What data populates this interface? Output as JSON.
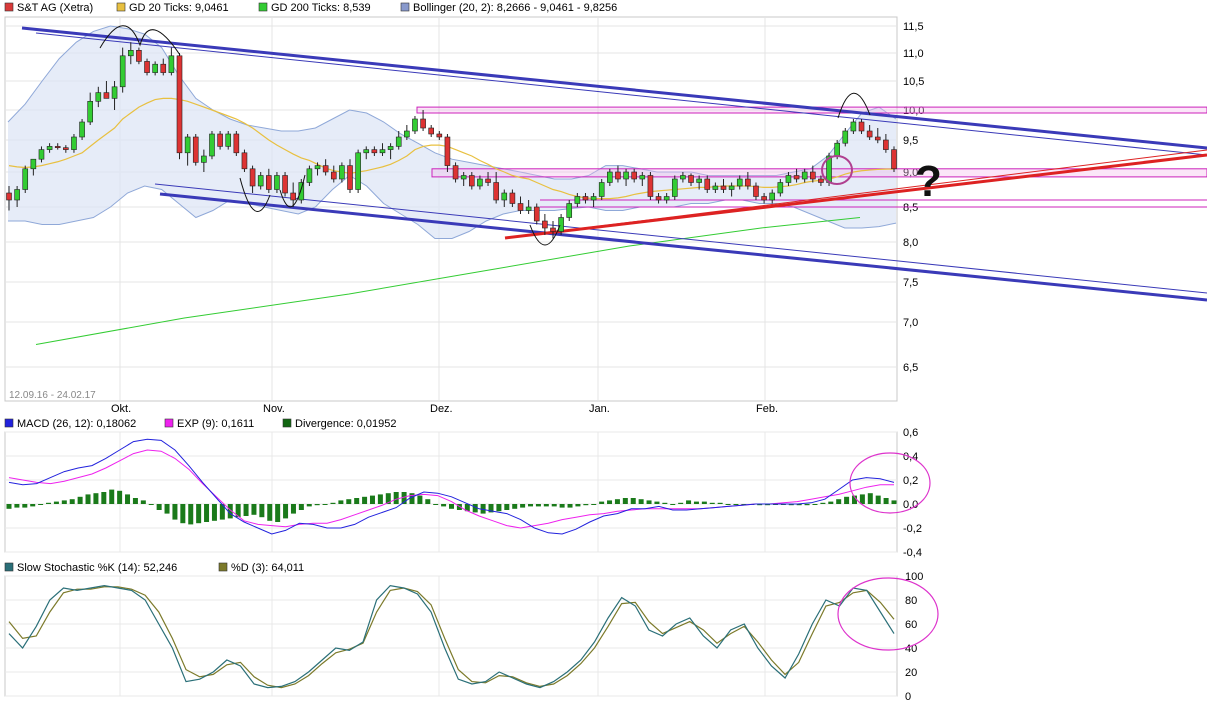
{
  "chart_data": [
    {
      "type": "candlestick",
      "title": "S&T AG (Xetra)",
      "legend": [
        {
          "label": "S&T AG (Xetra)",
          "color": "#d93a3a"
        },
        {
          "label": "GD 20 Ticks: 9,0461",
          "color": "#e8c040"
        },
        {
          "label": "GD 200 Ticks: 8,539",
          "color": "#33cc33"
        },
        {
          "label": "Bollinger (20, 2): 8,2666 - 9,0461 - 9,8256",
          "color": "#8899cc"
        }
      ],
      "date_range": "12.09.16 - 24.02.17",
      "x_ticks": [
        "Okt.",
        "Nov.",
        "Dez.",
        "Jan.",
        "Feb."
      ],
      "y_ticks": [
        "11,5",
        "11,0",
        "10,5",
        "10,0",
        "9,5",
        "9,0",
        "8,5",
        "8,0",
        "7,5",
        "7,0",
        "6,5"
      ],
      "ylim": [
        6.2,
        11.7
      ],
      "annotation": "?",
      "ohlc": [
        [
          8.7,
          8.8,
          8.45,
          8.6
        ],
        [
          8.6,
          8.8,
          8.5,
          8.75
        ],
        [
          8.75,
          9.1,
          8.7,
          9.05
        ],
        [
          9.05,
          9.2,
          8.95,
          9.2
        ],
        [
          9.2,
          9.4,
          9.15,
          9.35
        ],
        [
          9.35,
          9.45,
          9.3,
          9.4
        ],
        [
          9.4,
          9.45,
          9.35,
          9.38
        ],
        [
          9.38,
          9.42,
          9.3,
          9.35
        ],
        [
          9.35,
          9.6,
          9.3,
          9.55
        ],
        [
          9.55,
          9.85,
          9.5,
          9.8
        ],
        [
          9.8,
          10.3,
          9.75,
          10.15
        ],
        [
          10.15,
          10.4,
          10.05,
          10.3
        ],
        [
          10.3,
          10.5,
          10.2,
          10.2
        ],
        [
          10.2,
          10.5,
          10.0,
          10.4
        ],
        [
          10.4,
          11.1,
          10.3,
          10.95
        ],
        [
          10.95,
          11.2,
          10.8,
          11.05
        ],
        [
          11.05,
          11.1,
          10.8,
          10.85
        ],
        [
          10.85,
          10.9,
          10.6,
          10.65
        ],
        [
          10.65,
          10.85,
          10.6,
          10.8
        ],
        [
          10.8,
          10.9,
          10.6,
          10.65
        ],
        [
          10.65,
          11.1,
          10.6,
          10.95
        ],
        [
          10.95,
          11.0,
          9.2,
          9.3
        ],
        [
          9.3,
          9.6,
          9.1,
          9.55
        ],
        [
          9.55,
          9.6,
          9.1,
          9.15
        ],
        [
          9.15,
          9.35,
          9.0,
          9.25
        ],
        [
          9.25,
          9.65,
          9.2,
          9.6
        ],
        [
          9.6,
          9.65,
          9.35,
          9.4
        ],
        [
          9.4,
          9.65,
          9.35,
          9.6
        ],
        [
          9.6,
          9.65,
          9.25,
          9.3
        ],
        [
          9.3,
          9.35,
          9.0,
          9.05
        ],
        [
          9.05,
          9.1,
          8.7,
          8.8
        ],
        [
          8.8,
          9.0,
          8.75,
          8.95
        ],
        [
          8.95,
          9.05,
          8.7,
          8.75
        ],
        [
          8.75,
          9.0,
          8.7,
          8.95
        ],
        [
          8.95,
          9.0,
          8.65,
          8.7
        ],
        [
          8.7,
          8.85,
          8.5,
          8.6
        ],
        [
          8.6,
          8.9,
          8.55,
          8.85
        ],
        [
          8.85,
          9.1,
          8.8,
          9.05
        ],
        [
          9.05,
          9.15,
          8.95,
          9.1
        ],
        [
          9.1,
          9.2,
          8.95,
          9.0
        ],
        [
          9.0,
          9.1,
          8.85,
          8.9
        ],
        [
          8.9,
          9.15,
          8.85,
          9.1
        ],
        [
          9.1,
          9.2,
          8.7,
          8.75
        ],
        [
          8.75,
          9.35,
          8.7,
          9.3
        ],
        [
          9.3,
          9.4,
          9.2,
          9.35
        ],
        [
          9.35,
          9.4,
          9.25,
          9.3
        ],
        [
          9.3,
          9.45,
          9.25,
          9.35
        ],
        [
          9.35,
          9.45,
          9.2,
          9.4
        ],
        [
          9.4,
          9.65,
          9.35,
          9.55
        ],
        [
          9.55,
          9.75,
          9.5,
          9.65
        ],
        [
          9.65,
          9.9,
          9.6,
          9.85
        ],
        [
          9.85,
          10.0,
          9.65,
          9.7
        ],
        [
          9.7,
          9.75,
          9.55,
          9.6
        ],
        [
          9.6,
          9.65,
          9.5,
          9.55
        ],
        [
          9.55,
          9.6,
          9.0,
          9.1
        ],
        [
          9.1,
          9.15,
          8.85,
          8.9
        ],
        [
          8.9,
          9.0,
          8.8,
          8.95
        ],
        [
          8.95,
          9.0,
          8.75,
          8.8
        ],
        [
          8.8,
          8.95,
          8.75,
          8.9
        ],
        [
          8.9,
          9.0,
          8.8,
          8.85
        ],
        [
          8.85,
          9.0,
          8.55,
          8.6
        ],
        [
          8.6,
          8.75,
          8.5,
          8.7
        ],
        [
          8.7,
          8.75,
          8.5,
          8.55
        ],
        [
          8.55,
          8.65,
          8.4,
          8.45
        ],
        [
          8.45,
          8.6,
          8.4,
          8.5
        ],
        [
          8.5,
          8.55,
          8.25,
          8.3
        ],
        [
          8.3,
          8.4,
          8.1,
          8.2
        ],
        [
          8.2,
          8.3,
          8.05,
          8.15
        ],
        [
          8.15,
          8.4,
          8.1,
          8.35
        ],
        [
          8.35,
          8.6,
          8.3,
          8.55
        ],
        [
          8.55,
          8.7,
          8.5,
          8.65
        ],
        [
          8.65,
          8.7,
          8.55,
          8.6
        ],
        [
          8.6,
          8.7,
          8.5,
          8.65
        ],
        [
          8.65,
          8.9,
          8.6,
          8.85
        ],
        [
          8.85,
          9.05,
          8.8,
          9.0
        ],
        [
          9.0,
          9.1,
          8.85,
          8.9
        ],
        [
          8.9,
          9.05,
          8.8,
          9.0
        ],
        [
          9.0,
          9.05,
          8.85,
          8.9
        ],
        [
          8.9,
          9.0,
          8.8,
          8.95
        ],
        [
          8.95,
          9.0,
          8.6,
          8.65
        ],
        [
          8.65,
          8.7,
          8.55,
          8.6
        ],
        [
          8.6,
          8.7,
          8.55,
          8.65
        ],
        [
          8.65,
          8.95,
          8.6,
          8.9
        ],
        [
          8.9,
          9.0,
          8.85,
          8.95
        ],
        [
          8.95,
          8.98,
          8.8,
          8.85
        ],
        [
          8.85,
          8.95,
          8.75,
          8.9
        ],
        [
          8.9,
          8.95,
          8.7,
          8.75
        ],
        [
          8.75,
          8.85,
          8.7,
          8.8
        ],
        [
          8.8,
          8.9,
          8.7,
          8.75
        ],
        [
          8.75,
          8.85,
          8.65,
          8.8
        ],
        [
          8.8,
          8.95,
          8.75,
          8.9
        ],
        [
          8.9,
          9.0,
          8.75,
          8.8
        ],
        [
          8.8,
          8.85,
          8.6,
          8.65
        ],
        [
          8.65,
          8.7,
          8.55,
          8.6
        ],
        [
          8.6,
          8.75,
          8.55,
          8.7
        ],
        [
          8.7,
          8.9,
          8.65,
          8.85
        ],
        [
          8.85,
          9.0,
          8.8,
          8.95
        ],
        [
          8.95,
          9.05,
          8.85,
          8.9
        ],
        [
          8.9,
          9.05,
          8.85,
          9.0
        ],
        [
          9.0,
          9.1,
          8.85,
          8.9
        ],
        [
          8.9,
          8.95,
          8.8,
          8.85
        ],
        [
          8.85,
          9.3,
          8.8,
          9.25
        ],
        [
          9.25,
          9.5,
          9.2,
          9.45
        ],
        [
          9.45,
          9.7,
          9.4,
          9.65
        ],
        [
          9.65,
          9.85,
          9.6,
          9.8
        ],
        [
          9.8,
          9.85,
          9.6,
          9.65
        ],
        [
          9.65,
          9.75,
          9.5,
          9.55
        ],
        [
          9.55,
          9.7,
          9.45,
          9.5
        ],
        [
          9.5,
          9.6,
          9.3,
          9.35
        ],
        [
          9.35,
          9.4,
          9.0,
          9.05
        ]
      ],
      "gd20": [
        9.1,
        9.08,
        9.07,
        9.08,
        9.1,
        9.13,
        9.16,
        9.2,
        9.25,
        9.3,
        9.4,
        9.5,
        9.6,
        9.7,
        9.85,
        9.95,
        10.05,
        10.12,
        10.18,
        10.2,
        10.2,
        10.18,
        10.15,
        10.1,
        10.05,
        10.0,
        9.95,
        9.9,
        9.85,
        9.78,
        9.7,
        9.6,
        9.5,
        9.42,
        9.35,
        9.28,
        9.22,
        9.18,
        9.12,
        9.06,
        9.02,
        9.0,
        8.98,
        9.0,
        9.02,
        9.05,
        9.08,
        9.12,
        9.18,
        9.25,
        9.35,
        9.4,
        9.42,
        9.42,
        9.4,
        9.35,
        9.3,
        9.25,
        9.18,
        9.12,
        9.05,
        9.0,
        8.95,
        8.92,
        8.9,
        8.85,
        8.8,
        8.75,
        8.72,
        8.68,
        8.65,
        8.63,
        8.62,
        8.62,
        8.62,
        8.63,
        8.65,
        8.68,
        8.7,
        8.72,
        8.73,
        8.74,
        8.75,
        8.76,
        8.77,
        8.78,
        8.78,
        8.79,
        8.8,
        8.8,
        8.8,
        8.8,
        8.79,
        8.78,
        8.78,
        8.79,
        8.8,
        8.82,
        8.85,
        8.87,
        8.88,
        8.9,
        8.93,
        8.97,
        9.0,
        9.02,
        9.03,
        9.04,
        9.045,
        9.0461
      ],
      "gd200": [
        [
          0.0,
          6.75
        ],
        [
          0.18,
          7.05
        ],
        [
          0.38,
          7.35
        ],
        [
          0.55,
          7.65
        ],
        [
          0.72,
          7.95
        ],
        [
          0.88,
          8.2
        ],
        [
          1.0,
          8.35
        ]
      ],
      "bollinger_upper": [
        9.8,
        10.1,
        10.5,
        10.9,
        11.2,
        11.4,
        11.5,
        11.45,
        11.35,
        11.1,
        10.6,
        10.2,
        10.0,
        9.85,
        9.75,
        9.7,
        9.65,
        9.65,
        9.7,
        9.85,
        10.0,
        9.95,
        9.8,
        9.6,
        9.45,
        9.3,
        9.2,
        9.15,
        9.1,
        9.05,
        9.0,
        8.95,
        8.9,
        8.9,
        8.95,
        9.1,
        9.1,
        9.05,
        9.0,
        9.0,
        9.0,
        8.95,
        8.95,
        8.95,
        8.95,
        8.95,
        9.0,
        9.05,
        9.25,
        9.6,
        9.95,
        10.05,
        9.85
      ],
      "bollinger_lower": [
        8.3,
        8.3,
        8.25,
        8.25,
        8.3,
        8.35,
        8.5,
        8.7,
        8.8,
        8.75,
        8.55,
        8.35,
        8.45,
        8.6,
        8.55,
        8.5,
        8.45,
        8.4,
        8.5,
        8.75,
        8.95,
        8.8,
        8.55,
        8.4,
        8.25,
        8.05,
        8.05,
        8.15,
        8.3,
        8.4,
        8.45,
        8.45,
        8.45,
        8.48,
        8.5,
        8.45,
        8.45,
        8.5,
        8.5,
        8.5,
        8.55,
        8.55,
        8.6,
        8.6,
        8.55,
        8.55,
        8.5,
        8.4,
        8.3,
        8.2,
        8.2,
        8.22,
        8.27
      ]
    },
    {
      "type": "macd",
      "legend": [
        {
          "label": "MACD (26, 12): 0,18062",
          "color": "#2222dd"
        },
        {
          "label": "EXP (9): 0,1611",
          "color": "#ee22ee"
        },
        {
          "label": "Divergence: 0,01952",
          "color": "#116611"
        }
      ],
      "y_ticks": [
        "0,6",
        "0,4",
        "0,2",
        "0,0",
        "-0,2",
        "-0,4"
      ],
      "ylim": [
        -0.4,
        0.6
      ],
      "macd": [
        0.18,
        0.16,
        0.17,
        0.22,
        0.27,
        0.3,
        0.32,
        0.38,
        0.45,
        0.52,
        0.54,
        0.53,
        0.45,
        0.32,
        0.18,
        0.05,
        -0.08,
        -0.15,
        -0.2,
        -0.25,
        -0.22,
        -0.16,
        -0.17,
        -0.2,
        -0.2,
        -0.17,
        -0.11,
        -0.07,
        -0.03,
        0.05,
        0.1,
        0.09,
        0.06,
        0.01,
        -0.04,
        -0.06,
        -0.08,
        -0.13,
        -0.2,
        -0.24,
        -0.25,
        -0.21,
        -0.15,
        -0.1,
        -0.08,
        -0.04,
        -0.04,
        -0.02,
        -0.05,
        -0.05,
        -0.04,
        -0.03,
        -0.02,
        -0.01,
        0.0,
        0.0,
        0.0,
        0.0,
        0.01,
        0.04,
        0.12,
        0.2,
        0.22,
        0.21,
        0.18
      ],
      "signal": [
        0.22,
        0.2,
        0.18,
        0.17,
        0.19,
        0.22,
        0.25,
        0.3,
        0.36,
        0.42,
        0.45,
        0.44,
        0.38,
        0.29,
        0.17,
        0.06,
        -0.05,
        -0.14,
        -0.17,
        -0.18,
        -0.19,
        -0.17,
        -0.16,
        -0.16,
        -0.13,
        -0.09,
        -0.05,
        -0.01,
        0.04,
        0.07,
        0.08,
        0.07,
        0.02,
        -0.05,
        -0.1,
        -0.14,
        -0.18,
        -0.2,
        -0.18,
        -0.16,
        -0.13,
        -0.11,
        -0.09,
        -0.08,
        -0.06,
        -0.05,
        -0.04,
        -0.04,
        -0.04,
        -0.04,
        -0.04,
        -0.03,
        -0.02,
        -0.01,
        0.0,
        0.0,
        0.01,
        0.02,
        0.04,
        0.06,
        0.08,
        0.11,
        0.14,
        0.16,
        0.16
      ],
      "divergence": [
        -0.04,
        -0.03,
        -0.03,
        -0.02,
        0.0,
        0.01,
        0.02,
        0.03,
        0.04,
        0.06,
        0.08,
        0.09,
        0.1,
        0.12,
        0.11,
        0.08,
        0.05,
        0.03,
        0.0,
        -0.05,
        -0.08,
        -0.13,
        -0.16,
        -0.17,
        -0.16,
        -0.15,
        -0.14,
        -0.13,
        -0.12,
        -0.11,
        -0.1,
        -0.09,
        -0.11,
        -0.14,
        -0.15,
        -0.12,
        -0.08,
        -0.05,
        -0.02,
        -0.01,
        0.0,
        0.01,
        0.03,
        0.04,
        0.05,
        0.06,
        0.07,
        0.08,
        0.09,
        0.1,
        0.1,
        0.09,
        0.07,
        0.04,
        0.0,
        -0.02,
        -0.04,
        -0.05,
        -0.06,
        -0.07,
        -0.08,
        -0.07,
        -0.06,
        -0.05,
        -0.04,
        -0.03,
        -0.02,
        -0.02,
        -0.02,
        -0.02,
        -0.03,
        -0.03,
        -0.02,
        -0.01,
        0.0,
        0.02,
        0.03,
        0.04,
        0.05,
        0.05,
        0.04,
        0.03,
        0.02,
        0.01,
        0.0,
        0.01,
        0.03,
        0.02,
        0.02,
        0.01,
        0.01,
        0.0,
        0.0,
        0.0,
        0.0,
        -0.01,
        -0.01,
        0.0,
        0.0,
        -0.01,
        -0.01,
        -0.01,
        0.0,
        0.01,
        0.02,
        0.04,
        0.06,
        0.07,
        0.08,
        0.09,
        0.07,
        0.05,
        0.03
      ]
    },
    {
      "type": "line",
      "legend": [
        {
          "label": "Slow Stochastic %K (14): 52,246",
          "color": "#2a6f78"
        },
        {
          "label": "%D (3): 64,011",
          "color": "#7c7a2a"
        }
      ],
      "y_ticks": [
        "100",
        "80",
        "60",
        "40",
        "20",
        "0"
      ],
      "ylim": [
        0,
        100
      ],
      "k": [
        52,
        40,
        58,
        80,
        90,
        88,
        90,
        92,
        90,
        88,
        80,
        60,
        40,
        12,
        14,
        20,
        30,
        25,
        10,
        7,
        8,
        12,
        20,
        30,
        40,
        38,
        45,
        80,
        92,
        90,
        85,
        70,
        40,
        14,
        10,
        12,
        20,
        15,
        10,
        7,
        12,
        20,
        30,
        45,
        65,
        82,
        75,
        55,
        50,
        60,
        65,
        50,
        40,
        55,
        60,
        40,
        25,
        15,
        35,
        60,
        80,
        75,
        90,
        88,
        70,
        52
      ],
      "d": [
        62,
        48,
        50,
        70,
        86,
        89,
        89,
        91,
        91,
        89,
        84,
        70,
        48,
        22,
        16,
        18,
        26,
        28,
        16,
        9,
        7,
        10,
        17,
        27,
        36,
        39,
        44,
        70,
        88,
        90,
        87,
        76,
        48,
        22,
        12,
        11,
        17,
        16,
        11,
        8,
        10,
        17,
        27,
        40,
        58,
        77,
        78,
        62,
        52,
        57,
        62,
        55,
        44,
        52,
        58,
        45,
        30,
        18,
        28,
        52,
        75,
        78,
        86,
        88,
        78,
        64
      ]
    }
  ]
}
